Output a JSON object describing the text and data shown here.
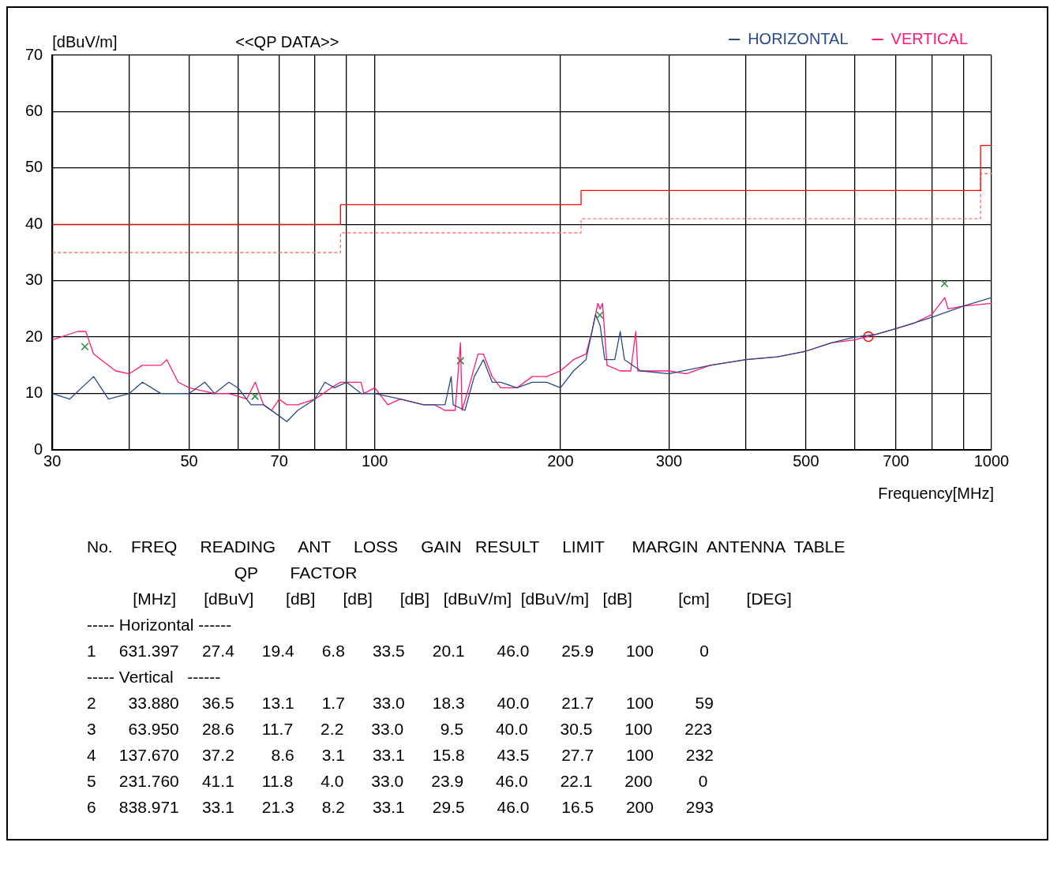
{
  "chart_data": {
    "type": "line",
    "title": "<<QP DATA>>",
    "ylabel": "[dBuV/m]",
    "xlabel": "Frequency[MHz]",
    "log": "x",
    "grid": true,
    "legend": "top right",
    "line_style": "solid",
    "xlim": [
      30,
      1000
    ],
    "xticks": [
      30,
      {
        "value": 40,
        "label": null
      },
      50,
      {
        "value": 60,
        "label": null
      },
      70,
      {
        "value": 80,
        "label": null
      },
      {
        "value": 90,
        "label": null
      },
      100,
      200,
      300,
      {
        "value": 400,
        "label": null
      },
      500,
      {
        "value": 600,
        "label": null
      },
      700,
      {
        "value": 800,
        "label": null
      },
      {
        "value": 900,
        "label": null
      },
      1000
    ],
    "ylim": [
      0,
      70
    ],
    "yticks": [
      0,
      10,
      20,
      30,
      40,
      50,
      60,
      70
    ],
    "series": [
      {
        "name": "HORIZONTAL",
        "color": "#2b4a8a",
        "marker": "none",
        "x": [
          30,
          32,
          35,
          37,
          40,
          42,
          45,
          48,
          50,
          53,
          55,
          58,
          60,
          63,
          66,
          70,
          72,
          75,
          80,
          83,
          86,
          90,
          95,
          100,
          110,
          120,
          130,
          133,
          134,
          140,
          145,
          150,
          155,
          160,
          170,
          180,
          190,
          200,
          210,
          220,
          228,
          232,
          236,
          245,
          250,
          254,
          270,
          300,
          350,
          400,
          450,
          500,
          550,
          600,
          650,
          700,
          800,
          900,
          1000
        ],
        "values": [
          10,
          9,
          13,
          9,
          10,
          12,
          10,
          10,
          10,
          12,
          10,
          12,
          11,
          8,
          8,
          6,
          5,
          7,
          9,
          12,
          11,
          12,
          10,
          10,
          9,
          8,
          8,
          13,
          8,
          7,
          13,
          16,
          12,
          12,
          11,
          12,
          12,
          11,
          14,
          16,
          24,
          22,
          16,
          16,
          21,
          16,
          14,
          13.5,
          15,
          16,
          16.5,
          17.5,
          19,
          20,
          20.5,
          21.5,
          23.5,
          25.5,
          27
        ]
      },
      {
        "name": "VERTICAL",
        "color": "#ff1a75",
        "marker": "none",
        "x": [
          30,
          33,
          34,
          35,
          38,
          40,
          42,
          45,
          46,
          48,
          50,
          55,
          58,
          62,
          64,
          66,
          68,
          70,
          72,
          75,
          80,
          85,
          88,
          90,
          95,
          96,
          100,
          105,
          110,
          120,
          125,
          130,
          135,
          137.7,
          138.5,
          142,
          147,
          150,
          155,
          160,
          170,
          180,
          190,
          200,
          210,
          220,
          225,
          230,
          232,
          234,
          238,
          250,
          260,
          265,
          267,
          280,
          300,
          320,
          350,
          400,
          450,
          500,
          550,
          600,
          650,
          700,
          750,
          800,
          840,
          850,
          900,
          1000
        ],
        "values": [
          19.5,
          21,
          21,
          17,
          14,
          13.5,
          15,
          15,
          16,
          12,
          11,
          10,
          10,
          9,
          12,
          8,
          7,
          9,
          8,
          8,
          9,
          11,
          12,
          12,
          12,
          10,
          11,
          8,
          9,
          8,
          8,
          7,
          7,
          19,
          7,
          11,
          17,
          17,
          13,
          11,
          11,
          13,
          13,
          14,
          16,
          17,
          21,
          26,
          25,
          26,
          15,
          14,
          14,
          21,
          14,
          14,
          14,
          13.5,
          15,
          16,
          16.5,
          17.5,
          19,
          19.5,
          20.5,
          21.5,
          22.5,
          24,
          27,
          25,
          25.5,
          26
        ]
      },
      {
        "color": "#ff0000",
        "marker": "none",
        "line_style": "solid",
        "x": [
          30,
          88,
          88,
          216,
          216,
          960,
          960,
          1000
        ],
        "values": [
          40,
          40,
          43.5,
          43.5,
          46,
          46,
          54,
          54
        ]
      },
      {
        "color": "#ff7070",
        "marker": "none",
        "line_style": "dashed",
        "x": [
          30,
          88,
          88,
          216,
          216,
          960,
          960,
          1000
        ],
        "values": [
          35,
          35,
          38.5,
          38.5,
          41,
          41,
          49,
          49
        ]
      },
      {
        "type": "scatter",
        "color": "#ff0000",
        "marker": "circle",
        "x": [
          631.397
        ],
        "values": [
          20.1
        ]
      },
      {
        "type": "scatter",
        "color": "#2e8b3e",
        "marker": "cross",
        "x": [
          33.88,
          63.95,
          137.67,
          231.76,
          838.971
        ],
        "values": [
          18.3,
          9.5,
          15.8,
          23.9,
          29.5
        ]
      }
    ],
    "annotations": [
      "No.    FREQ     READING     ANT     LOSS     GAIN   RESULT     LIMIT      MARGIN  ANTENNA  TABLE",
      "                                QP       FACTOR",
      "          [MHz]      [dBuV]       [dB]      [dB]      [dB]   [dBuV/m]  [dBuV/m]   [dB]          [cm]        [DEG]",
      "----- Horizontal ------",
      "1     631.397     27.4      19.4      6.8      33.5      20.1       46.0       25.9       100          0",
      "----- Vertical   ------",
      "2       33.880     36.5      13.1      1.7      33.0      18.3       40.0       21.7       100         59",
      "3       63.950     28.6      11.7      2.2      33.0        9.5       40.0       30.5       100       223",
      "4     137.670     37.2        8.6      3.1      33.1      15.8       43.5       27.7       100       232",
      "5     231.760     41.1      11.8      4.0      33.0      23.9       46.0       22.1       200          0",
      "6     838.971     33.1      21.3      8.2      33.1      29.5       46.0       16.5       200       293"
    ]
  }
}
